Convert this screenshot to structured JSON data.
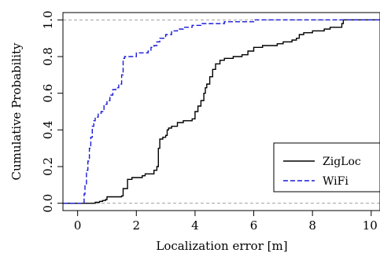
{
  "chart_data": {
    "type": "line",
    "title": "",
    "xlabel": "Localization error [m]",
    "ylabel": "Cumulative Probability",
    "xlim": [
      -0.5,
      10.3
    ],
    "ylim": [
      -0.04,
      1.04
    ],
    "x_ticks": [
      "0",
      "2",
      "4",
      "6",
      "8",
      "10"
    ],
    "y_ticks": [
      "0.0",
      "0.2",
      "0.4",
      "0.6",
      "0.8",
      "1.0"
    ],
    "reference_lines": [
      0,
      1
    ],
    "grid": false,
    "legend_position": "bottom-right",
    "series": [
      {
        "name": "ZigLoc",
        "color": "#000000",
        "dash": "solid",
        "points": [
          [
            -0.5,
            0
          ],
          [
            0.55,
            0
          ],
          [
            0.6,
            0.005
          ],
          [
            0.75,
            0.01
          ],
          [
            0.85,
            0.015
          ],
          [
            0.95,
            0.02
          ],
          [
            1.0,
            0.035
          ],
          [
            1.5,
            0.04
          ],
          [
            1.55,
            0.08
          ],
          [
            1.7,
            0.13
          ],
          [
            1.85,
            0.14
          ],
          [
            2.0,
            0.14
          ],
          [
            2.2,
            0.15
          ],
          [
            2.3,
            0.16
          ],
          [
            2.5,
            0.16
          ],
          [
            2.6,
            0.18
          ],
          [
            2.7,
            0.2
          ],
          [
            2.75,
            0.3
          ],
          [
            2.8,
            0.35
          ],
          [
            2.9,
            0.36
          ],
          [
            3.0,
            0.37
          ],
          [
            3.05,
            0.4
          ],
          [
            3.1,
            0.41
          ],
          [
            3.2,
            0.42
          ],
          [
            3.4,
            0.44
          ],
          [
            3.6,
            0.45
          ],
          [
            3.8,
            0.45
          ],
          [
            3.9,
            0.46
          ],
          [
            4.0,
            0.5
          ],
          [
            4.1,
            0.53
          ],
          [
            4.2,
            0.56
          ],
          [
            4.3,
            0.6
          ],
          [
            4.35,
            0.63
          ],
          [
            4.4,
            0.65
          ],
          [
            4.5,
            0.69
          ],
          [
            4.6,
            0.73
          ],
          [
            4.7,
            0.76
          ],
          [
            4.85,
            0.78
          ],
          [
            5.0,
            0.79
          ],
          [
            5.3,
            0.8
          ],
          [
            5.6,
            0.81
          ],
          [
            5.8,
            0.83
          ],
          [
            6.0,
            0.85
          ],
          [
            6.3,
            0.86
          ],
          [
            6.6,
            0.86
          ],
          [
            6.8,
            0.87
          ],
          [
            7.0,
            0.88
          ],
          [
            7.3,
            0.89
          ],
          [
            7.45,
            0.9
          ],
          [
            7.55,
            0.92
          ],
          [
            7.7,
            0.93
          ],
          [
            8.0,
            0.94
          ],
          [
            8.4,
            0.95
          ],
          [
            8.6,
            0.96
          ],
          [
            9.0,
            0.98
          ],
          [
            9.05,
            1.0
          ],
          [
            10.3,
            1.0
          ]
        ]
      },
      {
        "name": "WiFi",
        "color": "#1a1adb",
        "dash": "dashed",
        "points": [
          [
            -0.5,
            0
          ],
          [
            0.2,
            0
          ],
          [
            0.22,
            0.05
          ],
          [
            0.25,
            0.1
          ],
          [
            0.3,
            0.18
          ],
          [
            0.35,
            0.23
          ],
          [
            0.4,
            0.3
          ],
          [
            0.45,
            0.36
          ],
          [
            0.5,
            0.42
          ],
          [
            0.55,
            0.45
          ],
          [
            0.6,
            0.47
          ],
          [
            0.7,
            0.49
          ],
          [
            0.8,
            0.5
          ],
          [
            0.9,
            0.54
          ],
          [
            1.0,
            0.56
          ],
          [
            1.1,
            0.59
          ],
          [
            1.2,
            0.62
          ],
          [
            1.3,
            0.63
          ],
          [
            1.4,
            0.65
          ],
          [
            1.5,
            0.7
          ],
          [
            1.55,
            0.79
          ],
          [
            1.6,
            0.8
          ],
          [
            1.8,
            0.8
          ],
          [
            1.95,
            0.8
          ],
          [
            2.0,
            0.82
          ],
          [
            2.2,
            0.82
          ],
          [
            2.4,
            0.83
          ],
          [
            2.5,
            0.85
          ],
          [
            2.6,
            0.86
          ],
          [
            2.7,
            0.88
          ],
          [
            2.8,
            0.9
          ],
          [
            3.0,
            0.92
          ],
          [
            3.2,
            0.94
          ],
          [
            3.4,
            0.95
          ],
          [
            3.6,
            0.96
          ],
          [
            3.8,
            0.96
          ],
          [
            3.9,
            0.97
          ],
          [
            4.2,
            0.98
          ],
          [
            4.6,
            0.98
          ],
          [
            5.0,
            0.99
          ],
          [
            5.5,
            0.99
          ],
          [
            6.0,
            1.0
          ],
          [
            10.3,
            1.0
          ]
        ]
      }
    ]
  }
}
